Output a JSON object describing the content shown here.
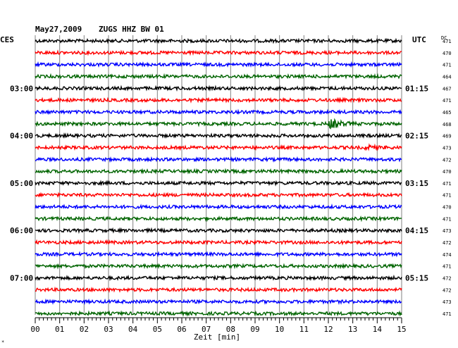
{
  "header": {
    "date": "May27,2009",
    "station": "ZUGS HHZ BW 01",
    "left_label": "CES",
    "right_label": "UTC",
    "dc_label": "DC"
  },
  "chart_data": {
    "type": "line",
    "title": "May27,2009   ZUGS HHZ BW 01",
    "xlabel": "Zeit [min]",
    "xlim": [
      0,
      15
    ],
    "x_ticks": [
      "00",
      "01",
      "02",
      "03",
      "04",
      "05",
      "06",
      "07",
      "08",
      "09",
      "10",
      "11",
      "12",
      "13",
      "14",
      "15"
    ],
    "grid": true,
    "colors": [
      "#000000",
      "#ff0000",
      "#0000ff",
      "#006400"
    ],
    "left_time_labels": [
      {
        "row": 4,
        "label": "03:00"
      },
      {
        "row": 8,
        "label": "04:00"
      },
      {
        "row": 12,
        "label": "05:00"
      },
      {
        "row": 16,
        "label": "06:00"
      },
      {
        "row": 20,
        "label": "07:00"
      }
    ],
    "right_time_labels": [
      {
        "row": 4,
        "label": "01:15"
      },
      {
        "row": 8,
        "label": "02:15"
      },
      {
        "row": 12,
        "label": "03:15"
      },
      {
        "row": 16,
        "label": "04:15"
      },
      {
        "row": 20,
        "label": "05:15"
      }
    ],
    "dc_values": [
      471,
      470,
      471,
      464,
      467,
      471,
      465,
      468,
      469,
      473,
      472,
      470,
      471,
      471,
      470,
      471,
      473,
      472,
      474,
      471,
      472,
      472,
      473,
      471
    ],
    "events": [
      {
        "row": 7,
        "x_min": 12.1,
        "amplitude": "large"
      },
      {
        "row": 9,
        "x_min": 13.6,
        "amplitude": "small"
      }
    ]
  },
  "footer": {
    "note": "*"
  }
}
